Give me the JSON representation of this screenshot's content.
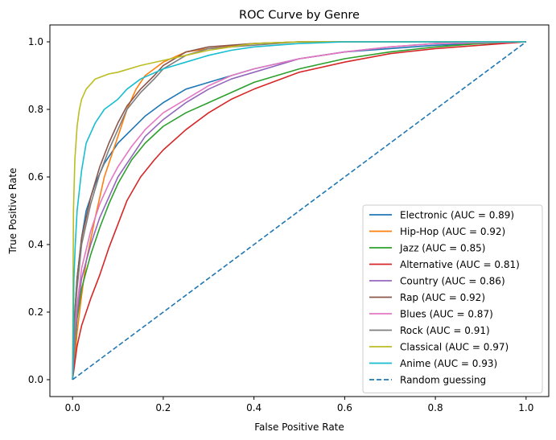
{
  "chart_data": {
    "type": "line",
    "title": "ROC Curve by Genre",
    "xlabel": "False Positive Rate",
    "ylabel": "True Positive Rate",
    "xlim": [
      -0.05,
      1.05
    ],
    "ylim": [
      -0.05,
      1.05
    ],
    "xticks": [
      0.0,
      0.2,
      0.4,
      0.6,
      0.8,
      1.0
    ],
    "yticks": [
      0.0,
      0.2,
      0.4,
      0.6,
      0.8,
      1.0
    ],
    "xtick_labels": [
      "0.0",
      "0.2",
      "0.4",
      "0.6",
      "0.8",
      "1.0"
    ],
    "ytick_labels": [
      "0.0",
      "0.2",
      "0.4",
      "0.6",
      "0.8",
      "1.0"
    ],
    "legend_position": "lower-right",
    "series": [
      {
        "name": "Electronic (AUC = 0.89)",
        "color": "#1f77b4",
        "style": "solid",
        "x": [
          0,
          0.005,
          0.01,
          0.02,
          0.03,
          0.05,
          0.07,
          0.1,
          0.13,
          0.16,
          0.2,
          0.25,
          0.3,
          0.4,
          0.5,
          0.6,
          0.7,
          0.8,
          0.9,
          1.0
        ],
        "y": [
          0,
          0.2,
          0.3,
          0.42,
          0.5,
          0.58,
          0.64,
          0.7,
          0.74,
          0.78,
          0.82,
          0.86,
          0.88,
          0.92,
          0.95,
          0.97,
          0.98,
          0.99,
          0.995,
          1.0
        ]
      },
      {
        "name": "Hip-Hop (AUC = 0.92)",
        "color": "#ff7f0e",
        "style": "solid",
        "x": [
          0,
          0.005,
          0.01,
          0.02,
          0.03,
          0.05,
          0.07,
          0.1,
          0.12,
          0.14,
          0.16,
          0.18,
          0.2,
          0.25,
          0.3,
          0.4,
          0.5,
          0.6,
          0.8,
          1.0
        ],
        "y": [
          0,
          0.06,
          0.14,
          0.25,
          0.35,
          0.48,
          0.6,
          0.72,
          0.8,
          0.86,
          0.9,
          0.92,
          0.94,
          0.97,
          0.98,
          0.995,
          1.0,
          1.0,
          1.0,
          1.0
        ]
      },
      {
        "name": "Jazz (AUC = 0.85)",
        "color": "#2ca02c",
        "style": "solid",
        "x": [
          0,
          0.005,
          0.01,
          0.02,
          0.04,
          0.06,
          0.08,
          0.1,
          0.13,
          0.16,
          0.2,
          0.25,
          0.3,
          0.35,
          0.4,
          0.5,
          0.6,
          0.7,
          0.8,
          0.9,
          1.0
        ],
        "y": [
          0,
          0.1,
          0.18,
          0.27,
          0.37,
          0.45,
          0.52,
          0.58,
          0.65,
          0.7,
          0.75,
          0.79,
          0.82,
          0.85,
          0.88,
          0.92,
          0.95,
          0.97,
          0.985,
          0.995,
          1.0
        ]
      },
      {
        "name": "Alternative (AUC = 0.81)",
        "color": "#d62728",
        "style": "solid",
        "x": [
          0,
          0.005,
          0.01,
          0.02,
          0.04,
          0.06,
          0.08,
          0.1,
          0.12,
          0.15,
          0.18,
          0.2,
          0.25,
          0.3,
          0.35,
          0.4,
          0.5,
          0.6,
          0.7,
          0.8,
          0.9,
          1.0
        ],
        "y": [
          0,
          0.05,
          0.1,
          0.16,
          0.24,
          0.31,
          0.39,
          0.46,
          0.53,
          0.6,
          0.65,
          0.68,
          0.74,
          0.79,
          0.83,
          0.86,
          0.91,
          0.94,
          0.965,
          0.98,
          0.99,
          1.0
        ]
      },
      {
        "name": "Country (AUC = 0.86)",
        "color": "#9467bd",
        "style": "solid",
        "x": [
          0,
          0.005,
          0.01,
          0.02,
          0.04,
          0.06,
          0.08,
          0.1,
          0.13,
          0.16,
          0.2,
          0.25,
          0.3,
          0.35,
          0.4,
          0.5,
          0.6,
          0.7,
          0.8,
          1.0
        ],
        "y": [
          0,
          0.12,
          0.2,
          0.3,
          0.4,
          0.48,
          0.54,
          0.6,
          0.66,
          0.72,
          0.77,
          0.82,
          0.86,
          0.89,
          0.91,
          0.95,
          0.97,
          0.985,
          0.995,
          1.0
        ]
      },
      {
        "name": "Rap (AUC = 0.92)",
        "color": "#8c564b",
        "style": "solid",
        "x": [
          0,
          0.005,
          0.01,
          0.02,
          0.04,
          0.06,
          0.08,
          0.1,
          0.12,
          0.15,
          0.18,
          0.2,
          0.25,
          0.3,
          0.4,
          0.5,
          0.6,
          1.0
        ],
        "y": [
          0,
          0.2,
          0.3,
          0.42,
          0.54,
          0.63,
          0.7,
          0.76,
          0.81,
          0.86,
          0.9,
          0.93,
          0.97,
          0.985,
          0.995,
          1.0,
          1.0,
          1.0
        ]
      },
      {
        "name": "Blues (AUC = 0.87)",
        "color": "#e377c2",
        "style": "solid",
        "x": [
          0,
          0.005,
          0.01,
          0.02,
          0.04,
          0.06,
          0.08,
          0.1,
          0.13,
          0.16,
          0.2,
          0.25,
          0.3,
          0.35,
          0.4,
          0.5,
          0.6,
          0.7,
          0.8,
          1.0
        ],
        "y": [
          0,
          0.15,
          0.22,
          0.33,
          0.44,
          0.52,
          0.58,
          0.63,
          0.69,
          0.74,
          0.79,
          0.83,
          0.87,
          0.9,
          0.92,
          0.95,
          0.97,
          0.985,
          0.995,
          1.0
        ]
      },
      {
        "name": "Rock (AUC = 0.91)",
        "color": "#7f7f7f",
        "style": "solid",
        "x": [
          0,
          0.005,
          0.01,
          0.02,
          0.04,
          0.06,
          0.08,
          0.1,
          0.12,
          0.15,
          0.18,
          0.2,
          0.25,
          0.3,
          0.4,
          0.5,
          0.6,
          1.0
        ],
        "y": [
          0,
          0.18,
          0.27,
          0.4,
          0.52,
          0.61,
          0.68,
          0.74,
          0.8,
          0.85,
          0.89,
          0.92,
          0.96,
          0.98,
          0.99,
          1.0,
          1.0,
          1.0
        ]
      },
      {
        "name": "Classical (AUC = 0.97)",
        "color": "#bcbd22",
        "style": "solid",
        "x": [
          0,
          0.002,
          0.005,
          0.01,
          0.015,
          0.02,
          0.03,
          0.05,
          0.08,
          0.1,
          0.15,
          0.2,
          0.25,
          0.3,
          0.35,
          0.4,
          0.5,
          1.0
        ],
        "y": [
          0,
          0.5,
          0.65,
          0.75,
          0.8,
          0.83,
          0.86,
          0.89,
          0.905,
          0.91,
          0.93,
          0.945,
          0.96,
          0.975,
          0.985,
          0.995,
          1.0,
          1.0
        ]
      },
      {
        "name": "Anime (AUC = 0.93)",
        "color": "#17becf",
        "style": "solid",
        "x": [
          0,
          0.003,
          0.006,
          0.01,
          0.02,
          0.03,
          0.05,
          0.07,
          0.1,
          0.12,
          0.15,
          0.2,
          0.25,
          0.3,
          0.35,
          0.4,
          0.5,
          0.6,
          1.0
        ],
        "y": [
          0,
          0.3,
          0.4,
          0.5,
          0.62,
          0.7,
          0.76,
          0.8,
          0.83,
          0.86,
          0.89,
          0.92,
          0.94,
          0.96,
          0.975,
          0.985,
          0.995,
          1.0,
          1.0
        ]
      },
      {
        "name": "Random guessing",
        "color": "#1f77b4",
        "style": "dashed",
        "x": [
          0,
          1
        ],
        "y": [
          0,
          1
        ]
      }
    ]
  }
}
